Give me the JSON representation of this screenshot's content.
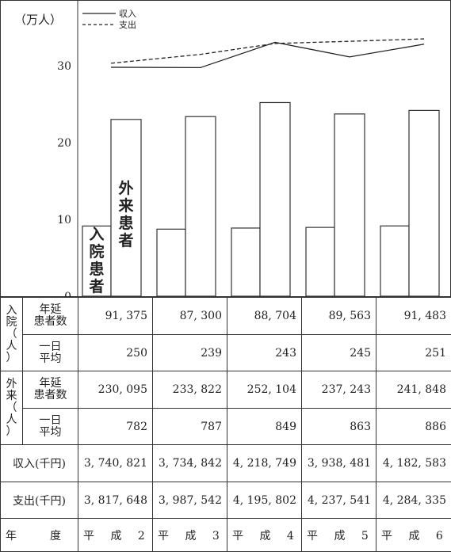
{
  "chart_data": {
    "type": "bar+line",
    "unit_label": "（万人）",
    "categories": [
      "平 成 2",
      "平 成 3",
      "平 成 4",
      "平 成 5",
      "平 成 6"
    ],
    "ylim": [
      0,
      36
    ],
    "yticks": [
      0,
      10,
      20,
      30
    ],
    "bar_series": [
      {
        "name": "入院患者",
        "color": "#ffffff",
        "values": [
          91375,
          87300,
          88704,
          89563,
          91483
        ]
      },
      {
        "name": "外来患者",
        "color": "#ffffff",
        "values": [
          230095,
          233822,
          252104,
          237243,
          241848
        ]
      }
    ],
    "line_series": [
      {
        "name": "収入",
        "style": "solid",
        "values": [
          3740821,
          3734842,
          4218749,
          3938481,
          4182583
        ]
      },
      {
        "name": "支出",
        "style": "dashed",
        "values": [
          3817648,
          3987542,
          4195802,
          4237541,
          4284335
        ]
      }
    ],
    "legend_position": "top-left"
  },
  "table": {
    "inpatient": {
      "group_label": "入院（人）",
      "annual_label": "年延患者数",
      "daily_label": "一日平均",
      "annual": [
        "91, 375",
        "87, 300",
        "88, 704",
        "89, 563",
        "91, 483"
      ],
      "daily": [
        "250",
        "239",
        "243",
        "245",
        "251"
      ]
    },
    "outpatient": {
      "group_label": "外来（人）",
      "annual_label": "年延患者数",
      "daily_label": "一日平均",
      "annual": [
        "230, 095",
        "233, 822",
        "252, 104",
        "237, 243",
        "241, 848"
      ],
      "daily": [
        "782",
        "787",
        "849",
        "863",
        "886"
      ]
    },
    "income": {
      "label": "収入(千円)",
      "values": [
        "3, 740, 821",
        "3, 734, 842",
        "4, 218, 749",
        "3, 938, 481",
        "4, 182, 583"
      ]
    },
    "expense": {
      "label": "支出(千円)",
      "values": [
        "3, 817, 648",
        "3, 987, 542",
        "4, 195, 802",
        "4, 237, 541",
        "4, 284, 335"
      ]
    },
    "year_label": "年　　　度",
    "years": [
      "平 成 2",
      "平 成 3",
      "平 成 4",
      "平 成 5",
      "平 成 6"
    ]
  }
}
